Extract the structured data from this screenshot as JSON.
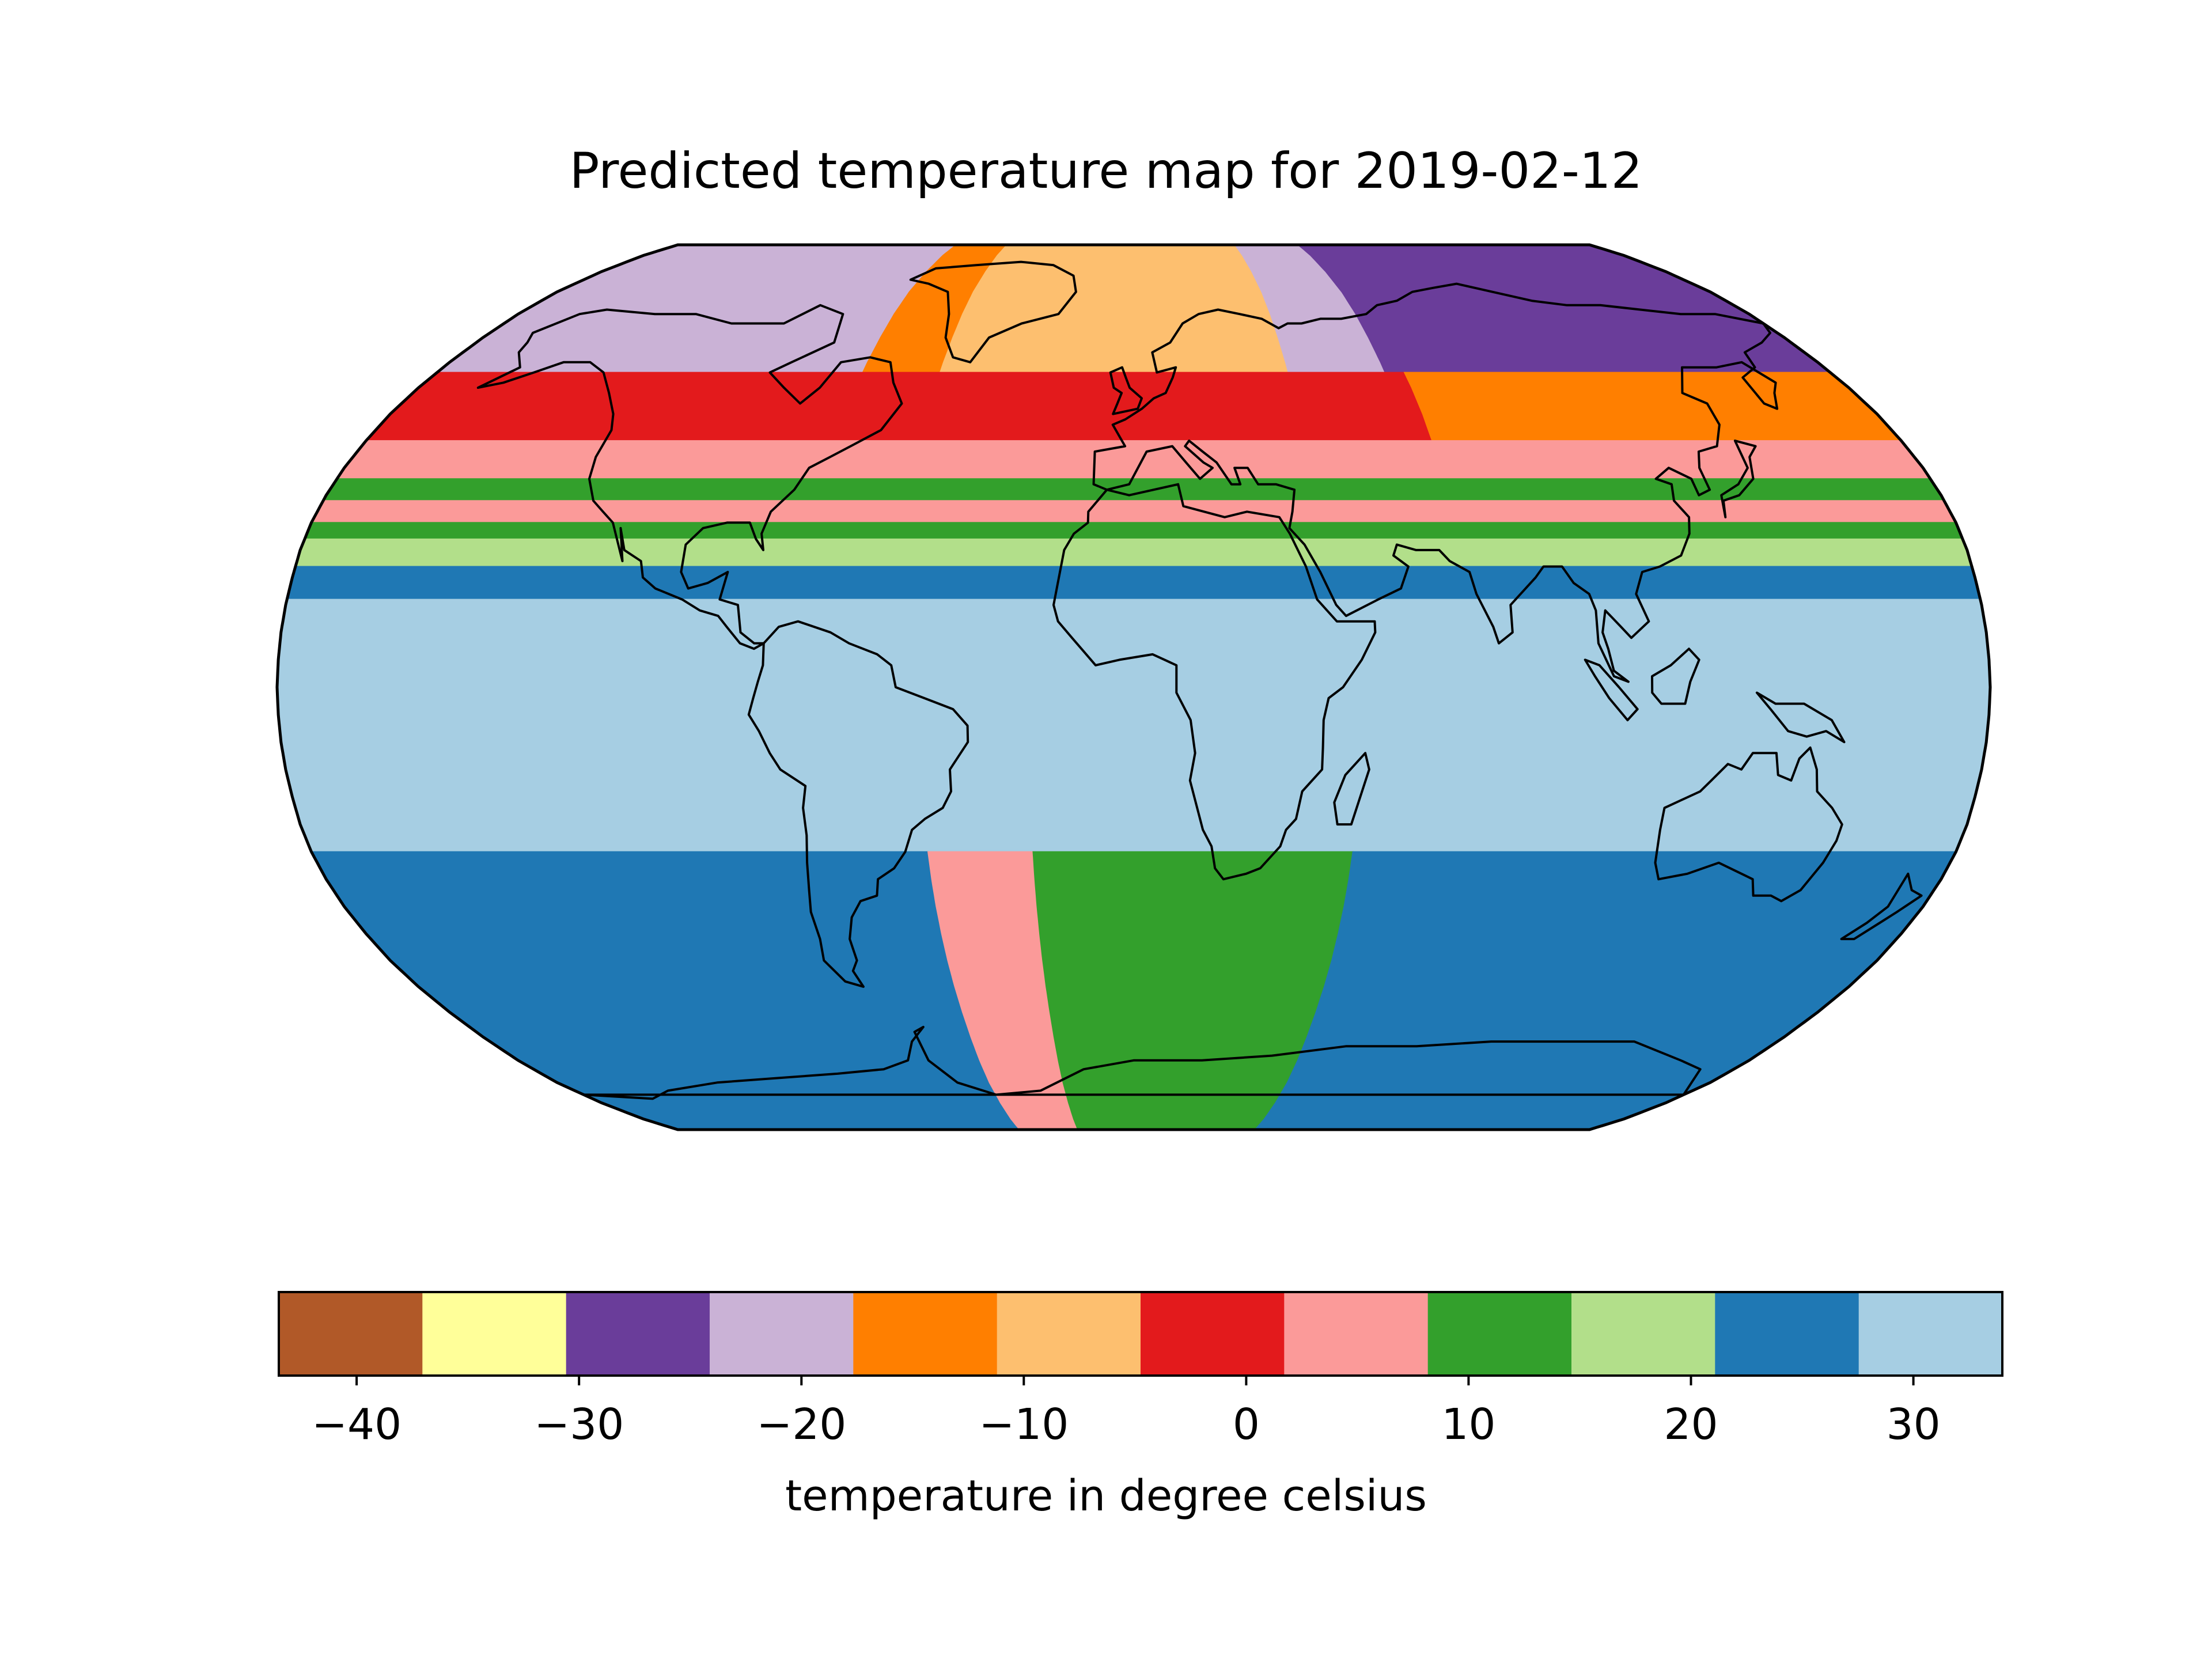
{
  "map": {
    "title": "Predicted temperature map for 2019-02-12",
    "projection": "robinson",
    "bands": [
      {
        "lat_from": 90,
        "lat_to": 58,
        "lon_from": -180,
        "lon_to": -70,
        "color": "#cab2d6"
      },
      {
        "lat_from": 90,
        "lat_to": 58,
        "lon_from": -70,
        "lon_to": -50,
        "color": "#ff7f00"
      },
      {
        "lat_from": 90,
        "lat_to": 58,
        "lon_from": -50,
        "lon_to": 40,
        "color": "#fdbf6f"
      },
      {
        "lat_from": 90,
        "lat_to": 58,
        "lon_from": 40,
        "lon_to": 65,
        "color": "#cab2d6"
      },
      {
        "lat_from": 90,
        "lat_to": 58,
        "lon_from": 65,
        "lon_to": 180,
        "color": "#6a3d9a"
      },
      {
        "lat_from": 58,
        "lat_to": 45,
        "lon_from": -180,
        "lon_to": 70,
        "color": "#e31a1c"
      },
      {
        "lat_from": 58,
        "lat_to": 45,
        "lon_from": 70,
        "lon_to": 180,
        "color": "#ff7f00"
      },
      {
        "lat_from": 45,
        "lat_to": 38,
        "lon_from": -180,
        "lon_to": 180,
        "color": "#fb9a99"
      },
      {
        "lat_from": 38,
        "lat_to": 34,
        "lon_from": -180,
        "lon_to": 180,
        "color": "#33a02c"
      },
      {
        "lat_from": 34,
        "lat_to": 30,
        "lon_from": -180,
        "lon_to": 180,
        "color": "#fb9a99"
      },
      {
        "lat_from": 30,
        "lat_to": 27,
        "lon_from": -180,
        "lon_to": 180,
        "color": "#33a02c"
      },
      {
        "lat_from": 27,
        "lat_to": 22,
        "lon_from": -180,
        "lon_to": 180,
        "color": "#b2df8a"
      },
      {
        "lat_from": 22,
        "lat_to": 16,
        "lon_from": -180,
        "lon_to": 180,
        "color": "#1f78b4"
      },
      {
        "lat_from": 16,
        "lat_to": -30,
        "lon_from": -180,
        "lon_to": 180,
        "color": "#a6cee3"
      },
      {
        "lat_from": -30,
        "lat_to": -90,
        "lon_from": -180,
        "lon_to": -45,
        "color": "#1f78b4"
      },
      {
        "lat_from": -30,
        "lat_to": -90,
        "lon_from": -45,
        "lon_to": -22,
        "color": "#fb9a99"
      },
      {
        "lat_from": -30,
        "lat_to": -90,
        "lon_from": -22,
        "lon_to": 48,
        "color": "#33a02c"
      },
      {
        "lat_from": -30,
        "lat_to": -90,
        "lon_from": 48,
        "lon_to": 180,
        "color": "#1f78b4"
      }
    ]
  },
  "colorbar": {
    "label": "temperature in degree celsius",
    "vmin": -43.5,
    "vmax": 34,
    "colors": [
      "#b15928",
      "#ffff99",
      "#6a3d9a",
      "#cab2d6",
      "#ff7f00",
      "#fdbf6f",
      "#e31a1c",
      "#fb9a99",
      "#33a02c",
      "#b2df8a",
      "#1f78b4",
      "#a6cee3"
    ],
    "ticks": [
      {
        "value": -40,
        "label": "−40"
      },
      {
        "value": -30,
        "label": "−30"
      },
      {
        "value": -20,
        "label": "−20"
      },
      {
        "value": -10,
        "label": "−10"
      },
      {
        "value": 0,
        "label": "0"
      },
      {
        "value": 10,
        "label": "10"
      },
      {
        "value": 20,
        "label": "20"
      },
      {
        "value": 30,
        "label": "30"
      }
    ]
  }
}
